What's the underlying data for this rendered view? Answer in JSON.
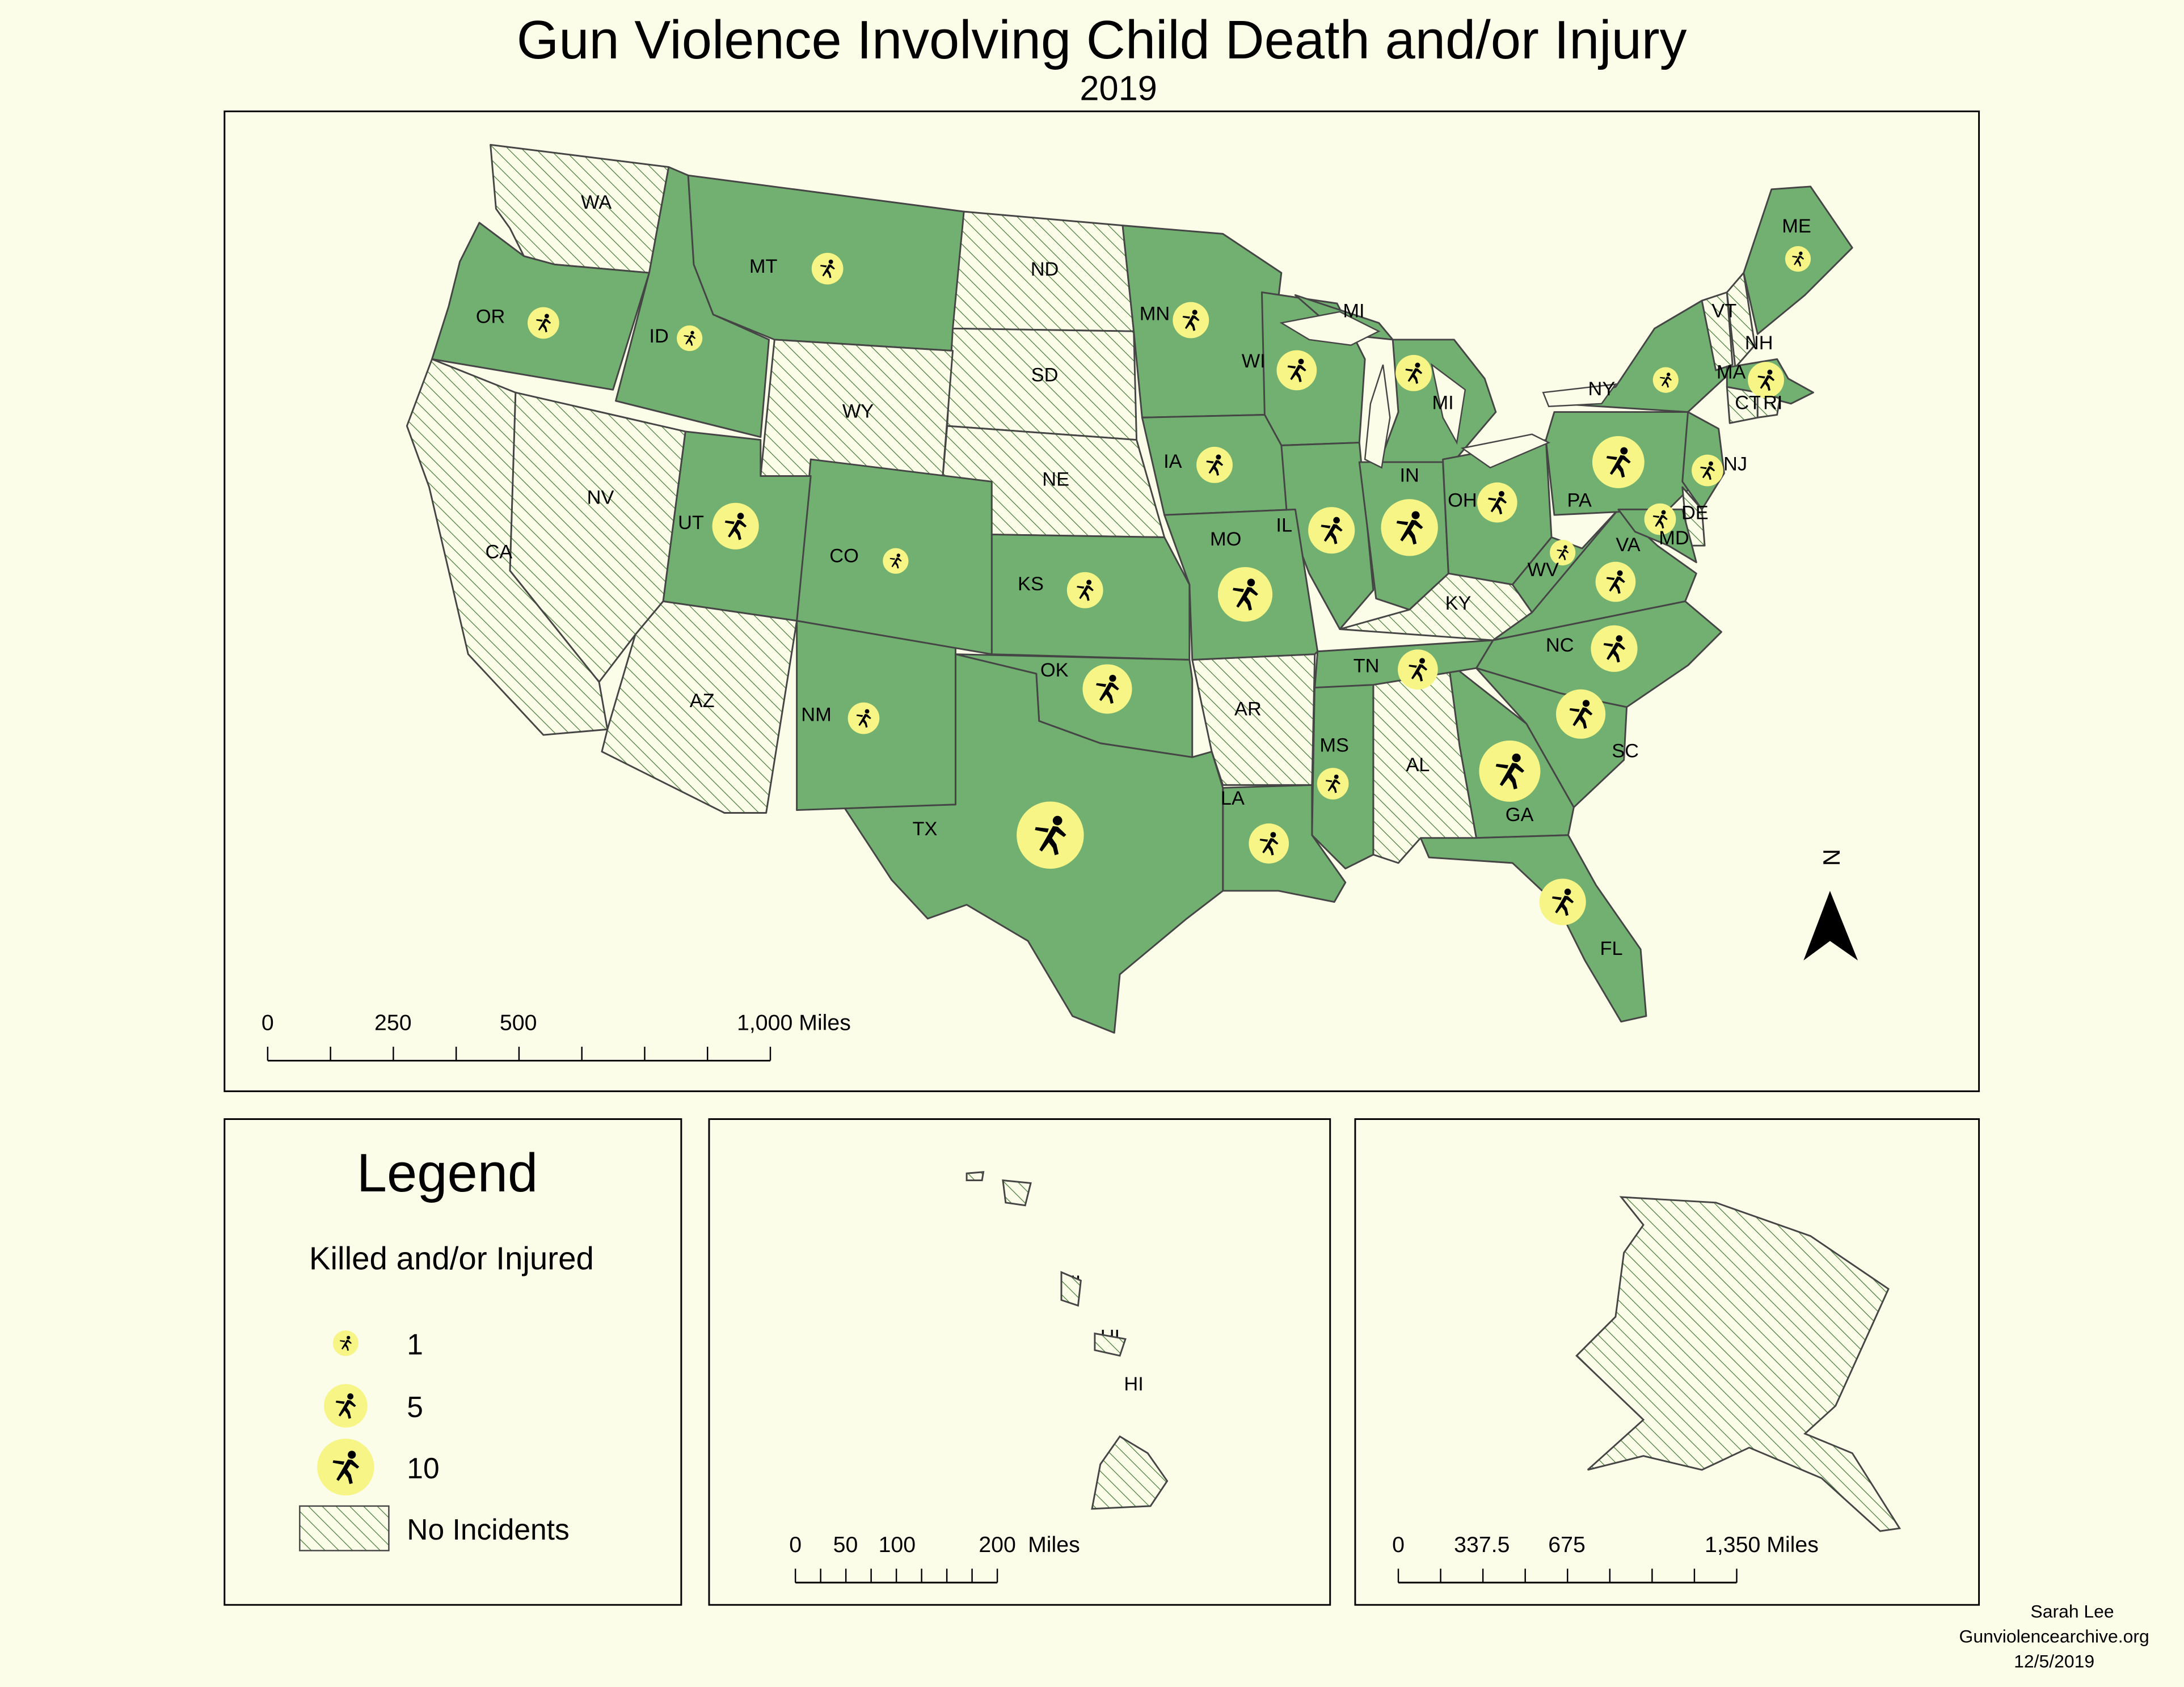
{
  "title": "Gun Violence Involving Child Death and/or Injury",
  "subtitle": "2019",
  "colors": {
    "background": "#fbfde8",
    "incident_fill": "#72b071",
    "state_border": "#454545",
    "hatch": "#3f7a34",
    "symbol_fill": "#f6f585",
    "symbol_figure": "#000000",
    "frame": "#000000"
  },
  "legend": {
    "title": "Legend",
    "subtitle": "Killed and/or Injured",
    "items": [
      {
        "label": "1",
        "value": 1
      },
      {
        "label": "5",
        "value": 5
      },
      {
        "label": "10",
        "value": 10
      }
    ],
    "no_incidents_label": "No Incidents"
  },
  "scalebars": {
    "main": {
      "labels": [
        "0",
        "250",
        "500",
        "1,000 Miles"
      ]
    },
    "hawaii": {
      "labels": [
        "0",
        "50",
        "100",
        "200",
        "Miles"
      ]
    },
    "alaska": {
      "labels": [
        "0",
        "337.5",
        "675",
        "1,350 Miles"
      ]
    }
  },
  "north_arrow": {
    "label": "N",
    "icon": "north-arrow-icon"
  },
  "credits": [
    "Sarah Lee",
    "Gunviolencearchive.org",
    "12/5/2019"
  ],
  "states": [
    {
      "label": "WA",
      "status": "none"
    },
    {
      "label": "OR",
      "status": "incident",
      "value": 2
    },
    {
      "label": "ID",
      "status": "incident",
      "value": 1
    },
    {
      "label": "MT",
      "status": "incident",
      "value": 2
    },
    {
      "label": "ND",
      "status": "none"
    },
    {
      "label": "SD",
      "status": "none"
    },
    {
      "label": "WY",
      "status": "none"
    },
    {
      "label": "NE",
      "status": "none"
    },
    {
      "label": "MN",
      "status": "incident",
      "value": 3
    },
    {
      "label": "WI",
      "status": "incident",
      "value": 4
    },
    {
      "label": "MI",
      "status": "incident",
      "value": 3
    },
    {
      "label": "MI",
      "status": "incident"
    },
    {
      "label": "IA",
      "status": "incident",
      "value": 3
    },
    {
      "label": "IL",
      "status": "incident",
      "value": 6
    },
    {
      "label": "IN",
      "status": "incident",
      "value": 10
    },
    {
      "label": "OH",
      "status": "incident",
      "value": 4
    },
    {
      "label": "KY",
      "status": "none"
    },
    {
      "label": "WV",
      "status": "incident",
      "value": 1
    },
    {
      "label": "VA",
      "status": "incident",
      "value": 4
    },
    {
      "label": "PA",
      "status": "incident",
      "value": 8
    },
    {
      "label": "NY",
      "status": "incident",
      "value": 1
    },
    {
      "label": "VT",
      "status": "none"
    },
    {
      "label": "NH",
      "status": "none"
    },
    {
      "label": "ME",
      "status": "incident",
      "value": 1
    },
    {
      "label": "MA",
      "status": "incident",
      "value": 3
    },
    {
      "label": "CT",
      "status": "none"
    },
    {
      "label": "RI",
      "status": "none"
    },
    {
      "label": "NJ",
      "status": "incident",
      "value": 2
    },
    {
      "label": "DE",
      "status": "none"
    },
    {
      "label": "MD",
      "status": "incident",
      "value": 2
    },
    {
      "label": "NC",
      "status": "incident",
      "value": 6
    },
    {
      "label": "SC",
      "status": "incident",
      "value": 7
    },
    {
      "label": "GA",
      "status": "incident",
      "value": 12
    },
    {
      "label": "FL",
      "status": "incident",
      "value": 6
    },
    {
      "label": "AL",
      "status": "none"
    },
    {
      "label": "MS",
      "status": "incident",
      "value": 2
    },
    {
      "label": "TN",
      "status": "incident",
      "value": 4
    },
    {
      "label": "LA",
      "status": "incident",
      "value": 4
    },
    {
      "label": "AR",
      "status": "none"
    },
    {
      "label": "MO",
      "status": "incident",
      "value": 9
    },
    {
      "label": "KS",
      "status": "incident",
      "value": 3
    },
    {
      "label": "OK",
      "status": "incident",
      "value": 7
    },
    {
      "label": "TX",
      "status": "incident",
      "value": 15
    },
    {
      "label": "NM",
      "status": "incident",
      "value": 2
    },
    {
      "label": "CO",
      "status": "incident",
      "value": 1
    },
    {
      "label": "UT",
      "status": "incident",
      "value": 6
    },
    {
      "label": "NV",
      "status": "none"
    },
    {
      "label": "CA",
      "status": "none"
    },
    {
      "label": "AZ",
      "status": "none"
    },
    {
      "label": "HI",
      "status": "none"
    },
    {
      "label": "HI",
      "status": "none"
    },
    {
      "label": "HI",
      "status": "none"
    },
    {
      "label": "HI",
      "status": "none"
    },
    {
      "label": "HI",
      "status": "none"
    },
    {
      "label": "AK",
      "status": "none"
    }
  ]
}
